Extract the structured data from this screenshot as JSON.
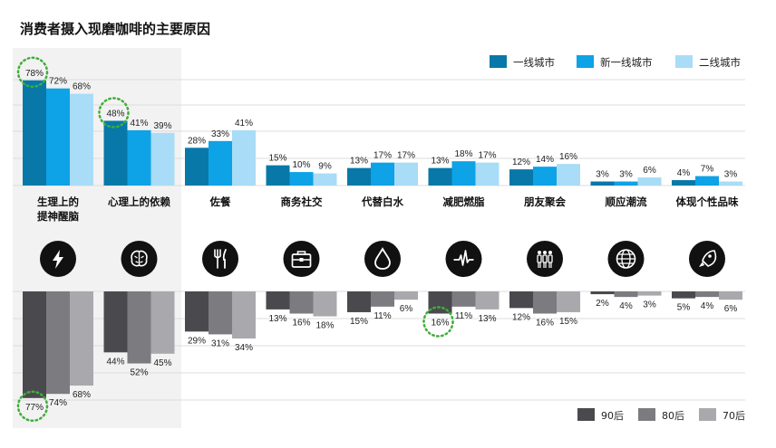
{
  "chart_data": {
    "type": "bar",
    "title": "消费者摄入现磨咖啡的主要原因",
    "categories": [
      "生理上的\n提神醒脑",
      "心理上的依赖",
      "佐餐",
      "商务社交",
      "代替白水",
      "减肥燃脂",
      "朋友聚会",
      "顺应潮流",
      "体现个性品味"
    ],
    "icons": [
      "lightning-icon",
      "brain-icon",
      "utensils-icon",
      "briefcase-icon",
      "water-drop-icon",
      "pulse-icon",
      "people-icon",
      "globe-icon",
      "rocket-icon"
    ],
    "upper": {
      "ylim": [
        0,
        100
      ],
      "series": [
        {
          "name": "一线城市",
          "color": "#0878a8",
          "values": [
            78,
            48,
            28,
            15,
            13,
            13,
            12,
            3,
            4
          ]
        },
        {
          "name": "新一线城市",
          "color": "#0ea2e6",
          "values": [
            72,
            41,
            33,
            10,
            17,
            18,
            14,
            3,
            7
          ]
        },
        {
          "name": "二线城市",
          "color": "#a9dcf6",
          "values": [
            68,
            39,
            41,
            9,
            17,
            17,
            16,
            6,
            3
          ]
        }
      ],
      "highlighted": [
        {
          "category": 0,
          "series": 0
        },
        {
          "category": 1,
          "series": 0
        }
      ]
    },
    "lower": {
      "ylim": [
        0,
        100
      ],
      "series": [
        {
          "name": "90后",
          "color": "#4a4a4e",
          "values": [
            77,
            44,
            29,
            13,
            15,
            16,
            12,
            2,
            5
          ]
        },
        {
          "name": "80后",
          "color": "#7b7b80",
          "values": [
            74,
            52,
            31,
            16,
            11,
            11,
            16,
            4,
            4
          ]
        },
        {
          "name": "70后",
          "color": "#a9a9ad",
          "values": [
            68,
            45,
            34,
            18,
            6,
            13,
            15,
            3,
            6
          ]
        }
      ],
      "highlighted": [
        {
          "category": 0,
          "series": 0
        },
        {
          "category": 5,
          "series": 0
        }
      ]
    },
    "shaded_categories": [
      0,
      1
    ],
    "value_suffix": "%",
    "grid": true
  }
}
